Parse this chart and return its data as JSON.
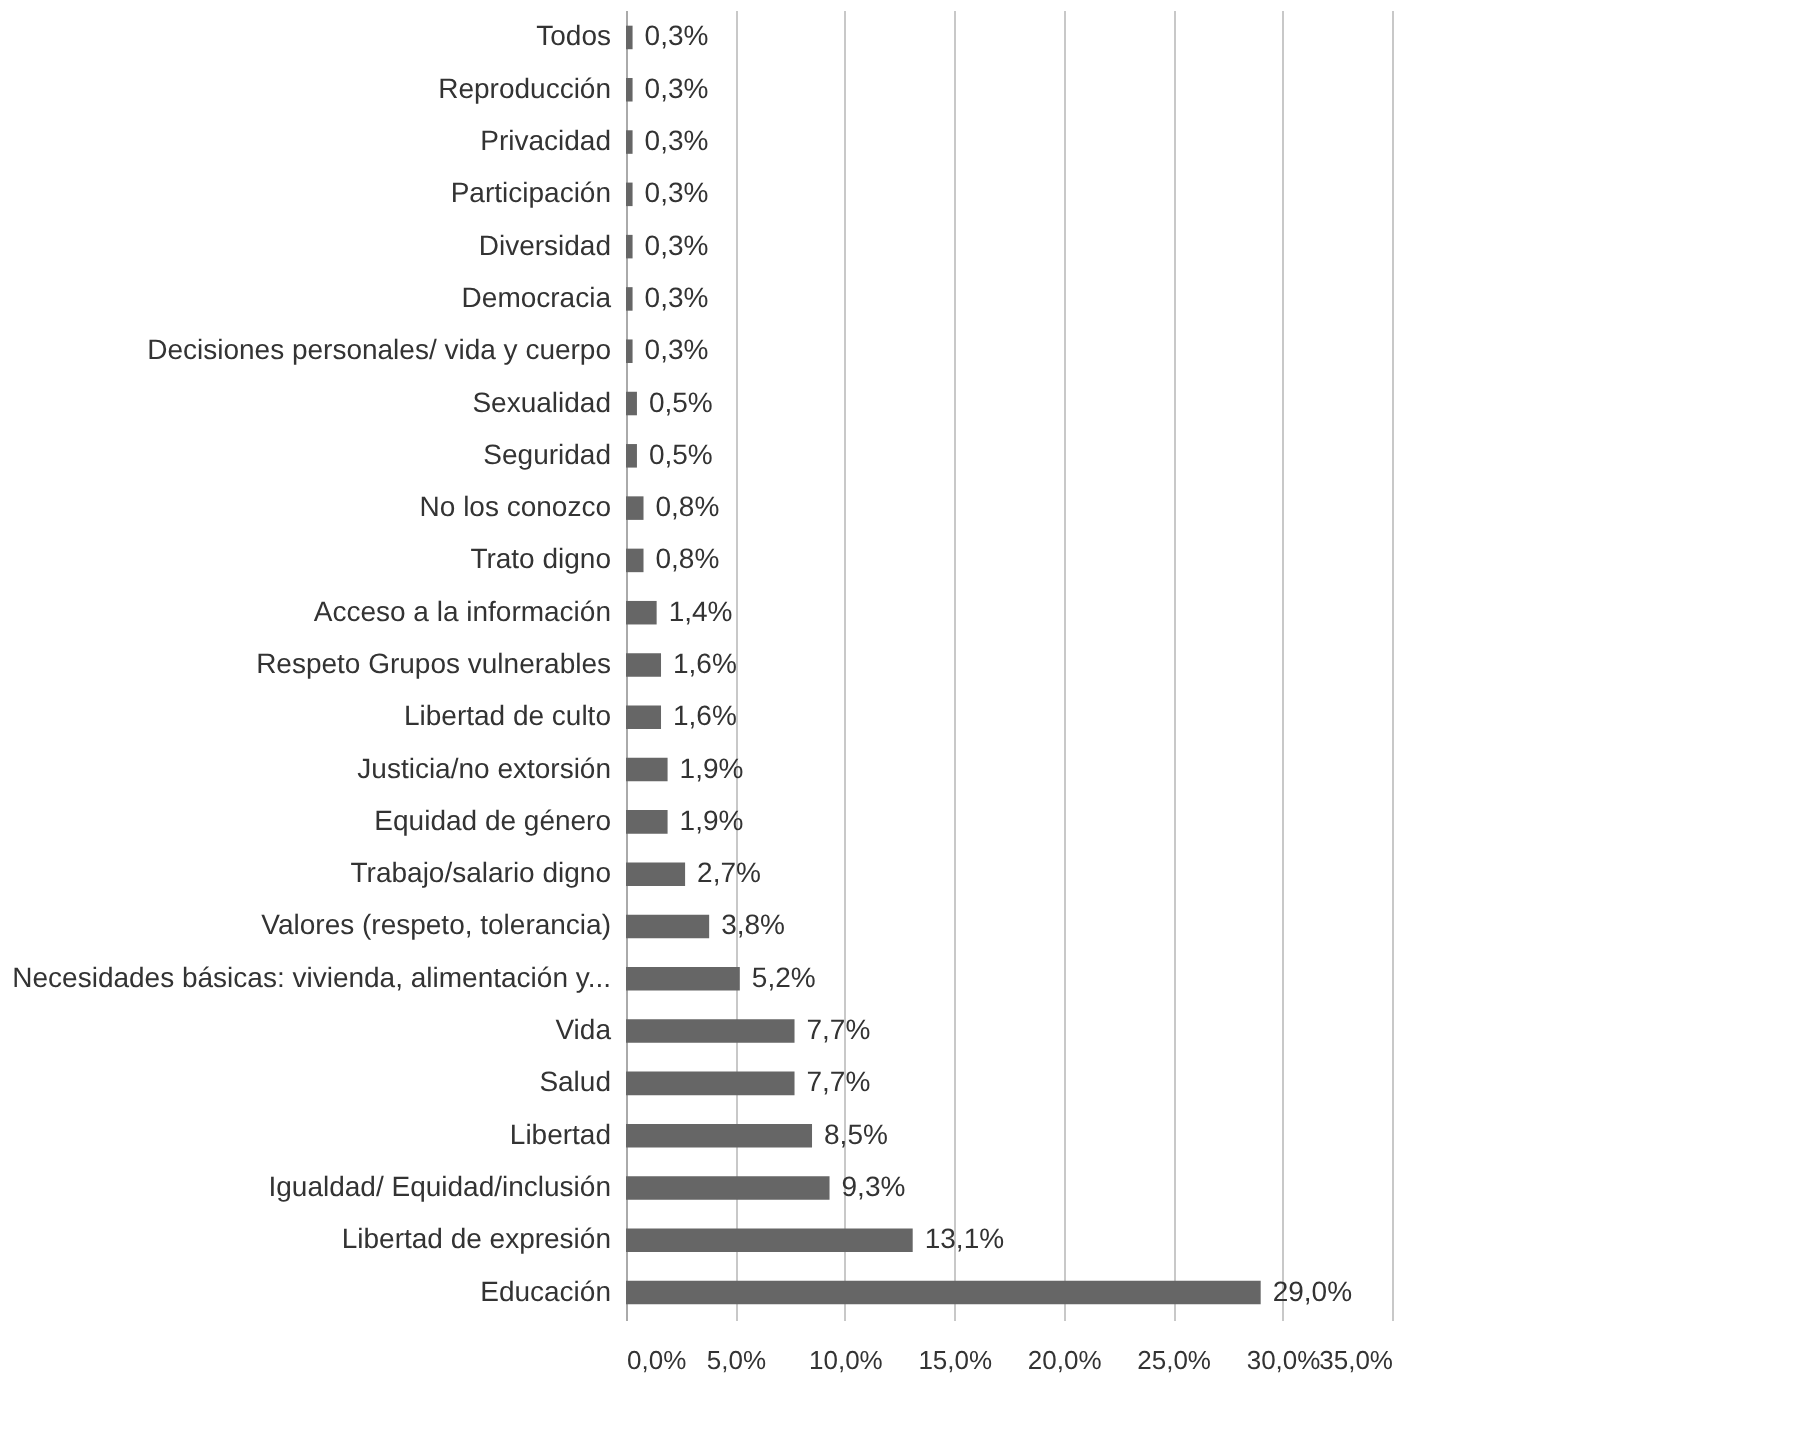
{
  "chart_data": {
    "type": "bar",
    "orientation": "horizontal",
    "categories": [
      "Todos",
      "Reproducción",
      "Privacidad",
      "Participación",
      "Diversidad",
      "Democracia",
      "Decisiones personales/ vida y cuerpo",
      "Sexualidad",
      "Seguridad",
      "No los conozco",
      "Trato digno",
      "Acceso a la información",
      "Respeto Grupos vulnerables",
      "Libertad de culto",
      "Justicia/no extorsión",
      "Equidad de género",
      "Trabajo/salario digno",
      "Valores (respeto, tolerancia)",
      "Necesidades básicas: vivienda, alimentación y...",
      "Vida",
      "Salud",
      "Libertad",
      "Igualdad/ Equidad/inclusión",
      "Libertad de expresión",
      "Educación"
    ],
    "values": [
      0.3,
      0.3,
      0.3,
      0.3,
      0.3,
      0.3,
      0.3,
      0.5,
      0.5,
      0.8,
      0.8,
      1.4,
      1.6,
      1.6,
      1.9,
      1.9,
      2.7,
      3.8,
      5.2,
      7.7,
      7.7,
      8.5,
      9.3,
      13.1,
      29.0
    ],
    "value_labels": [
      "0,3%",
      "0,3%",
      "0,3%",
      "0,3%",
      "0,3%",
      "0,3%",
      "0,3%",
      "0,5%",
      "0,5%",
      "0,8%",
      "0,8%",
      "1,4%",
      "1,6%",
      "1,6%",
      "1,9%",
      "1,9%",
      "2,7%",
      "3,8%",
      "5,2%",
      "7,7%",
      "7,7%",
      "8,5%",
      "9,3%",
      "13,1%",
      "29,0%"
    ],
    "color": "#666666",
    "xlim": [
      0,
      35
    ],
    "xticks": [
      {
        "value": 0,
        "label": "0,0%"
      },
      {
        "value": 5,
        "label": "5,0%"
      },
      {
        "value": 10,
        "label": "10,0%"
      },
      {
        "value": 15,
        "label": "15,0%"
      },
      {
        "value": 20,
        "label": "20,0%"
      },
      {
        "value": 25,
        "label": "25,0%"
      },
      {
        "value": 30,
        "label": "30,0%"
      },
      {
        "value": 35,
        "label": "35,0%"
      }
    ],
    "grid": "x"
  }
}
